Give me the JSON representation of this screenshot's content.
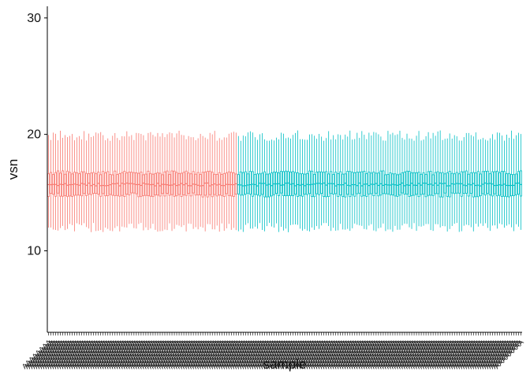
{
  "chart_data": {
    "type": "box",
    "xlabel": "sample",
    "ylabel": "vsn",
    "ylim": [
      3,
      31
    ],
    "yticks": [
      10,
      20,
      30
    ],
    "grid": false,
    "legend": "none",
    "x_tick_labels_legible": false,
    "series": [
      {
        "group": "group-1",
        "color": "#F8766D",
        "sample_count": 80,
        "whisker_low": 12.0,
        "q1": 14.8,
        "median": 15.7,
        "q3": 16.7,
        "whisker_high": 19.9
      },
      {
        "group": "group-2",
        "color": "#00BFC4",
        "sample_count": 120,
        "whisker_low": 12.0,
        "q1": 14.8,
        "median": 15.7,
        "q3": 16.7,
        "whisker_high": 19.9
      }
    ]
  }
}
